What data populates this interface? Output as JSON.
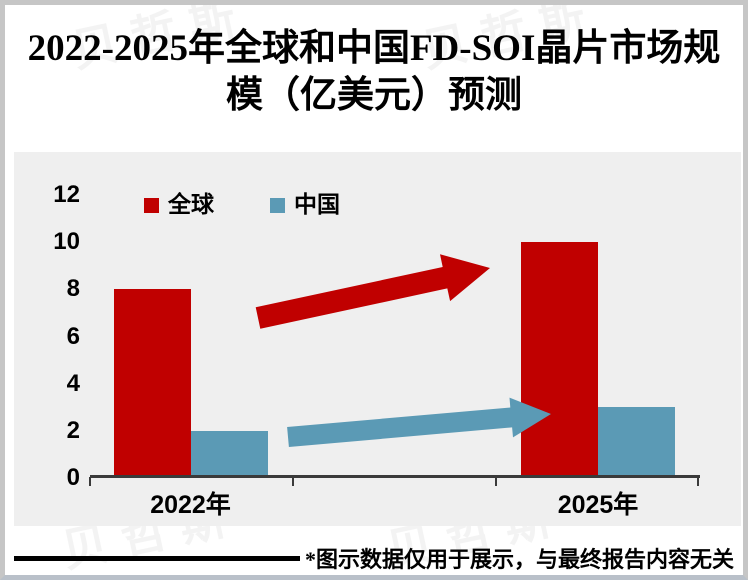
{
  "page": {
    "title_lines": [
      "2022-2025年全球和中国FD-SOI晶片市场规",
      "模（亿美元）预测"
    ],
    "footer_disclaimer": "*图示数据仅用于展示，与最终报告内容无关",
    "watermark_text": "贝哲斯"
  },
  "colors": {
    "global_red": "#c00000",
    "china_blue": "#5b9ab5",
    "panel_bg": "#efefef",
    "axis_line": "#3a3a3a",
    "page_border": "#c6c6c6",
    "footer_line": "#000000"
  },
  "chart_data": {
    "type": "bar",
    "title": "2022-2025年全球和中国FD-SOI晶片市场规模（亿美元）预测",
    "categories": [
      "2022年",
      "2025年"
    ],
    "series": [
      {
        "key": "global",
        "name": "全球",
        "color": "#c00000",
        "values": [
          8,
          10
        ]
      },
      {
        "key": "china",
        "name": "中国",
        "color": "#5b9ab5",
        "values": [
          2,
          3
        ]
      }
    ],
    "xlabel": "",
    "ylabel": "",
    "ylim": [
      0,
      12
    ],
    "yticks": [
      0,
      2,
      4,
      6,
      8,
      10,
      12
    ],
    "grid": false,
    "legend_position": "top",
    "annotations": [
      {
        "type": "block-arrow",
        "series": "全球",
        "color": "#c00000"
      },
      {
        "type": "block-arrow",
        "series": "中国",
        "color": "#5b9ab5"
      }
    ]
  }
}
